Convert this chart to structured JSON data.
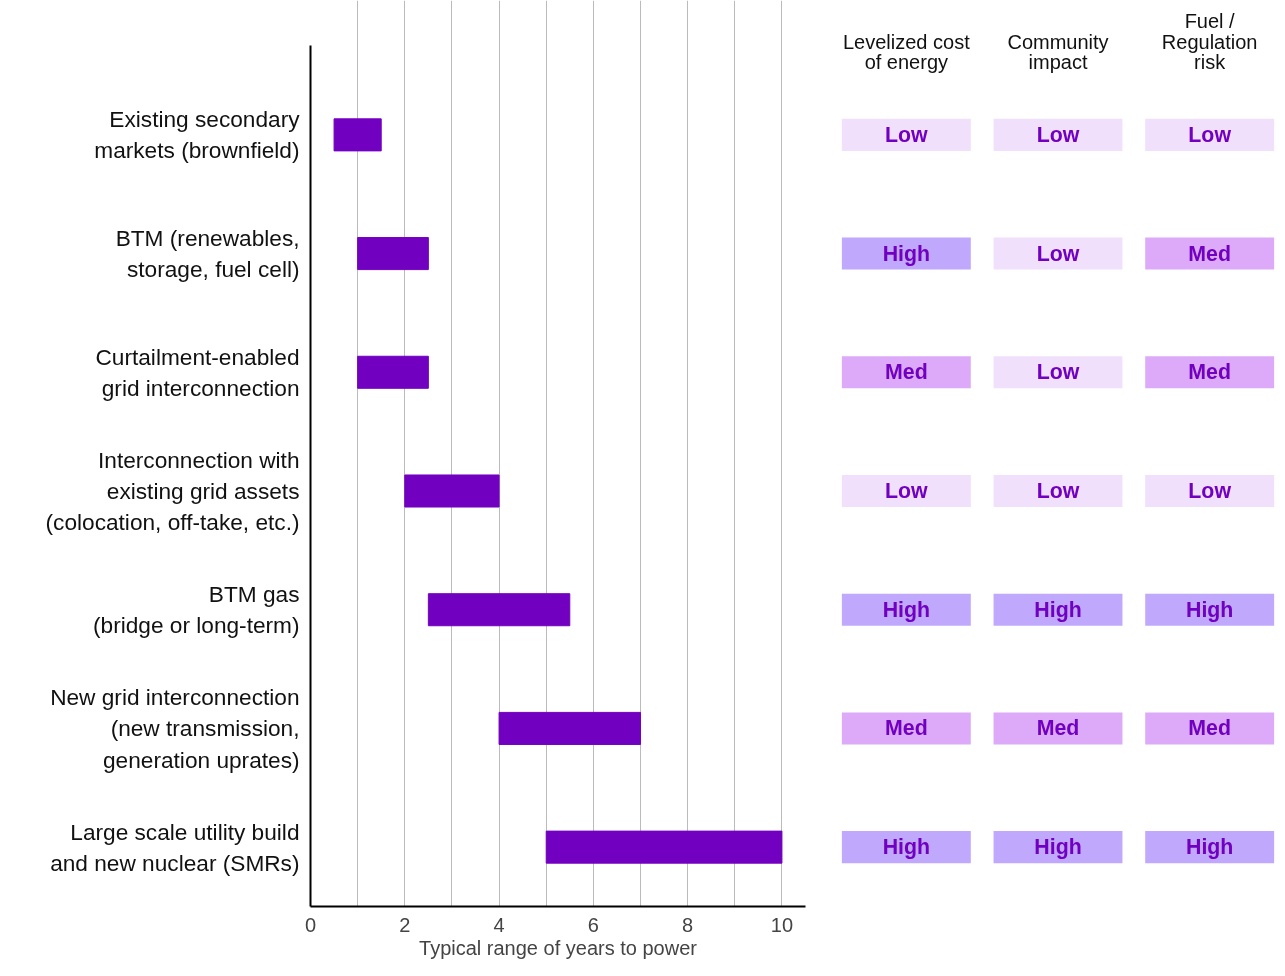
{
  "chart_data": [
    {
      "type": "bar",
      "orientation": "horizontal",
      "xlabel": "Typical range of years to power",
      "categories": [
        "Existing secondary\nmarkets (brownfield)",
        "BTM (renewables,\nstorage, fuel cell)",
        "Curtailment-enabled\ngrid interconnection",
        "Interconnection with\nexisting grid assets\n(colocation, off-take, etc.)",
        "BTM gas\n(bridge or long-term)",
        "New grid interconnection\n(new transmission,\ngeneration uprates)",
        "Large scale utility build\nand new nuclear (SMRs)"
      ],
      "base": [
        0.5,
        1,
        1,
        2,
        2.5,
        4,
        5
      ],
      "values": [
        1,
        1.5,
        1.5,
        2,
        3,
        3,
        5
      ],
      "color": "#7200c0",
      "xlim": [
        0,
        10.5
      ],
      "xticks": [
        0,
        {
          "value": 1,
          "label": null
        },
        2,
        {
          "value": 3,
          "label": null
        },
        4,
        {
          "value": 5,
          "label": null
        },
        6,
        {
          "value": 7,
          "label": null
        },
        8,
        {
          "value": 9,
          "label": null
        },
        10
      ],
      "grid": "x"
    },
    {
      "type": "other",
      "categories": [
        "Levelized cost\nof energy",
        "Community\nimpact",
        "Fuel /\nRegulation\nrisk"
      ],
      "cell_labels": [
        [
          "Low",
          "Low",
          "Low"
        ],
        [
          "High",
          "Low",
          "Med"
        ],
        [
          "Med",
          "Low",
          "Med"
        ],
        [
          "Low",
          "Low",
          "Low"
        ],
        [
          "High",
          "High",
          "High"
        ],
        [
          "Med",
          "Med",
          "Med"
        ],
        [
          "High",
          "High",
          "High"
        ]
      ],
      "colors": [
        [
          "#f0e0fc",
          "#f0e0fc",
          "#f0e0fc"
        ],
        [
          "#c0a8fc",
          "#f0e0fc",
          "#dcaaf8"
        ],
        [
          "#dcaaf8",
          "#f0e0fc",
          "#dcaaf8"
        ],
        [
          "#f0e0fc",
          "#f0e0fc",
          "#f0e0fc"
        ],
        [
          "#c0a8fc",
          "#c0a8fc",
          "#c0a8fc"
        ],
        [
          "#dcaaf8",
          "#dcaaf8",
          "#dcaaf8"
        ],
        [
          "#c0a8fc",
          "#c0a8fc",
          "#c0a8fc"
        ]
      ]
    }
  ]
}
